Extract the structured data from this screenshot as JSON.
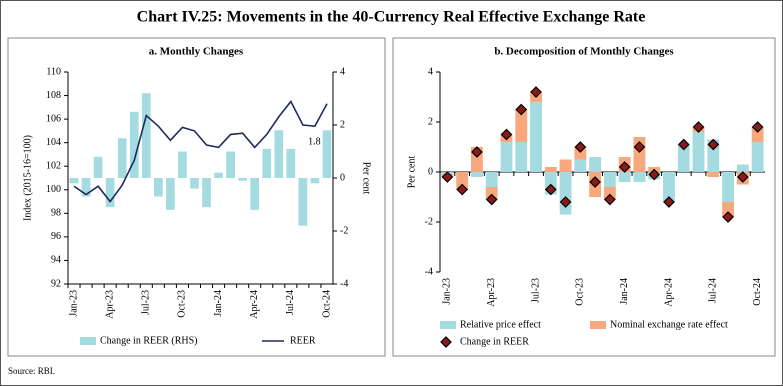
{
  "title": "Chart IV.25: Movements in the 40-Currency Real Effective Exchange Rate",
  "source": "Source: RBI.",
  "chart_data": [
    {
      "type": "combo",
      "title": "a. Monthly Changes",
      "categories": [
        "Jan-23",
        null,
        null,
        "Apr-23",
        null,
        null,
        "Jul-23",
        null,
        null,
        "Oct-23",
        null,
        null,
        "Jan-24",
        null,
        null,
        "Apr-24",
        null,
        null,
        "Jul-24",
        null,
        null,
        "Oct-24"
      ],
      "ylabel": "Index (2015-16=100)",
      "y2label": "Per cent",
      "ylim": [
        92,
        110
      ],
      "yticks": [
        92,
        94,
        96,
        98,
        100,
        102,
        104,
        106,
        108,
        110
      ],
      "y2lim": [
        -4,
        4
      ],
      "y2ticks": [
        -4,
        -2,
        0,
        2,
        4
      ],
      "series": [
        {
          "name": "Change in REER (RHS)",
          "type": "bar",
          "axis": "y2",
          "color": "#a3dbe1",
          "values": [
            -0.2,
            -0.7,
            0.8,
            -1.1,
            1.5,
            2.5,
            3.2,
            -0.7,
            -1.2,
            1.0,
            -0.4,
            -1.1,
            0.2,
            1.0,
            -0.1,
            -1.2,
            1.1,
            1.8,
            1.1,
            -1.8,
            -0.2,
            1.8
          ],
          "value_labels": [
            null,
            null,
            null,
            null,
            null,
            null,
            null,
            null,
            null,
            null,
            null,
            null,
            null,
            null,
            null,
            null,
            null,
            null,
            null,
            null,
            null,
            "1.8"
          ]
        },
        {
          "name": "REER",
          "type": "line",
          "color": "#1f2a5c",
          "values": [
            100.3,
            99.6,
            100.3,
            99.0,
            100.4,
            102.5,
            106.3,
            105.4,
            104.2,
            105.3,
            105.0,
            103.8,
            103.6,
            104.7,
            104.8,
            103.6,
            104.7,
            106.2,
            107.5,
            105.5,
            105.4,
            107.3
          ]
        }
      ]
    },
    {
      "type": "stacked",
      "title": "b. Decomposition of Monthly Changes",
      "categories": [
        "Jan-23",
        null,
        null,
        "Apr-23",
        null,
        null,
        "Jul-23",
        null,
        null,
        "Oct-23",
        null,
        null,
        "Jan-24",
        null,
        null,
        "Apr-24",
        null,
        null,
        "Jul-24",
        null,
        null,
        "Oct-24"
      ],
      "ylabel": "Per cent",
      "ylim": [
        -4,
        4
      ],
      "yticks": [
        -4,
        -2,
        0,
        2,
        4
      ],
      "series": [
        {
          "name": "Relative price effect",
          "type": "bar",
          "color": "#a3dbe1",
          "values": [
            -0.1,
            0.0,
            -0.2,
            -0.6,
            1.2,
            1.2,
            2.8,
            -0.9,
            -1.7,
            0.5,
            0.6,
            -0.6,
            -0.4,
            -0.4,
            -0.3,
            -1.2,
            1.1,
            1.6,
            1.3,
            -1.2,
            0.3,
            1.2
          ]
        },
        {
          "name": "Nominal exchange rate effect",
          "type": "bar",
          "color": "#f8a87c",
          "values": [
            -0.1,
            -0.7,
            1.0,
            -0.5,
            0.3,
            1.3,
            0.4,
            0.2,
            0.5,
            0.5,
            -1.0,
            -0.5,
            0.6,
            1.4,
            0.2,
            0.0,
            0.0,
            0.2,
            -0.2,
            -0.6,
            -0.5,
            0.6
          ]
        },
        {
          "name": "Change in REER",
          "type": "scatter",
          "marker": "diamond",
          "color": "#8b1a1a",
          "values": [
            -0.2,
            -0.7,
            0.8,
            -1.1,
            1.5,
            2.5,
            3.2,
            -0.7,
            -1.2,
            1.0,
            -0.4,
            -1.1,
            0.2,
            1.0,
            -0.1,
            -1.2,
            1.1,
            1.8,
            1.1,
            -1.8,
            -0.2,
            1.8
          ]
        }
      ]
    }
  ]
}
